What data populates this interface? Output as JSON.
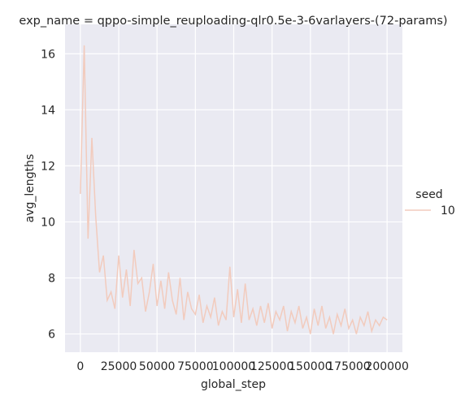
{
  "chart_data": {
    "type": "line",
    "title": "exp_name = qppo-simple_reuploading-qlr0.5e-3-6varlayers-(72-params)",
    "x_label": "global_step",
    "y_label": "avg_lengths",
    "legend_title": "seed",
    "x": [
      0,
      2500,
      5000,
      7500,
      10000,
      12500,
      15000,
      17500,
      20000,
      22500,
      25000,
      27500,
      30000,
      32500,
      35000,
      37500,
      40000,
      42500,
      45000,
      47500,
      50000,
      52500,
      55000,
      57500,
      60000,
      62500,
      65000,
      67500,
      70000,
      72500,
      75000,
      77500,
      80000,
      82500,
      85000,
      87500,
      90000,
      92500,
      95000,
      97500,
      100000,
      102500,
      105000,
      107500,
      110000,
      112500,
      115000,
      117500,
      120000,
      122500,
      125000,
      127500,
      130000,
      132500,
      135000,
      137500,
      140000,
      142500,
      145000,
      147500,
      150000,
      152500,
      155000,
      157500,
      160000,
      162500,
      165000,
      167500,
      170000,
      172500,
      175000,
      177500,
      180000,
      182500,
      185000,
      187500,
      190000,
      192500,
      195000,
      197500,
      200000
    ],
    "series": [
      {
        "name": "10",
        "color": "#f2cbbd",
        "values": [
          11.0,
          16.3,
          9.4,
          13.0,
          10.2,
          8.2,
          8.8,
          7.2,
          7.5,
          6.9,
          8.8,
          7.3,
          8.3,
          7.0,
          9.0,
          7.8,
          8.0,
          6.8,
          7.5,
          8.5,
          7.0,
          7.9,
          6.9,
          8.2,
          7.2,
          6.7,
          8.0,
          6.5,
          7.5,
          6.9,
          6.7,
          7.4,
          6.4,
          7.0,
          6.6,
          7.3,
          6.3,
          6.8,
          6.5,
          8.4,
          6.6,
          7.6,
          6.4,
          7.8,
          6.5,
          6.9,
          6.3,
          7.0,
          6.4,
          7.1,
          6.2,
          6.8,
          6.5,
          7.0,
          6.1,
          6.8,
          6.4,
          7.0,
          6.2,
          6.6,
          6.0,
          6.9,
          6.3,
          7.0,
          6.2,
          6.6,
          6.0,
          6.7,
          6.3,
          6.9,
          6.2,
          6.5,
          6.0,
          6.6,
          6.3,
          6.8,
          6.1,
          6.5,
          6.3,
          6.6,
          6.5
        ]
      }
    ],
    "xlim": [
      -10000,
      210000
    ],
    "xticks": [
      0,
      25000,
      50000,
      75000,
      100000,
      125000,
      150000,
      175000,
      200000
    ],
    "ylim": [
      5.35,
      17.05
    ],
    "yticks": [
      6,
      8,
      10,
      12,
      14,
      16
    ],
    "grid": true,
    "legend": "right"
  }
}
